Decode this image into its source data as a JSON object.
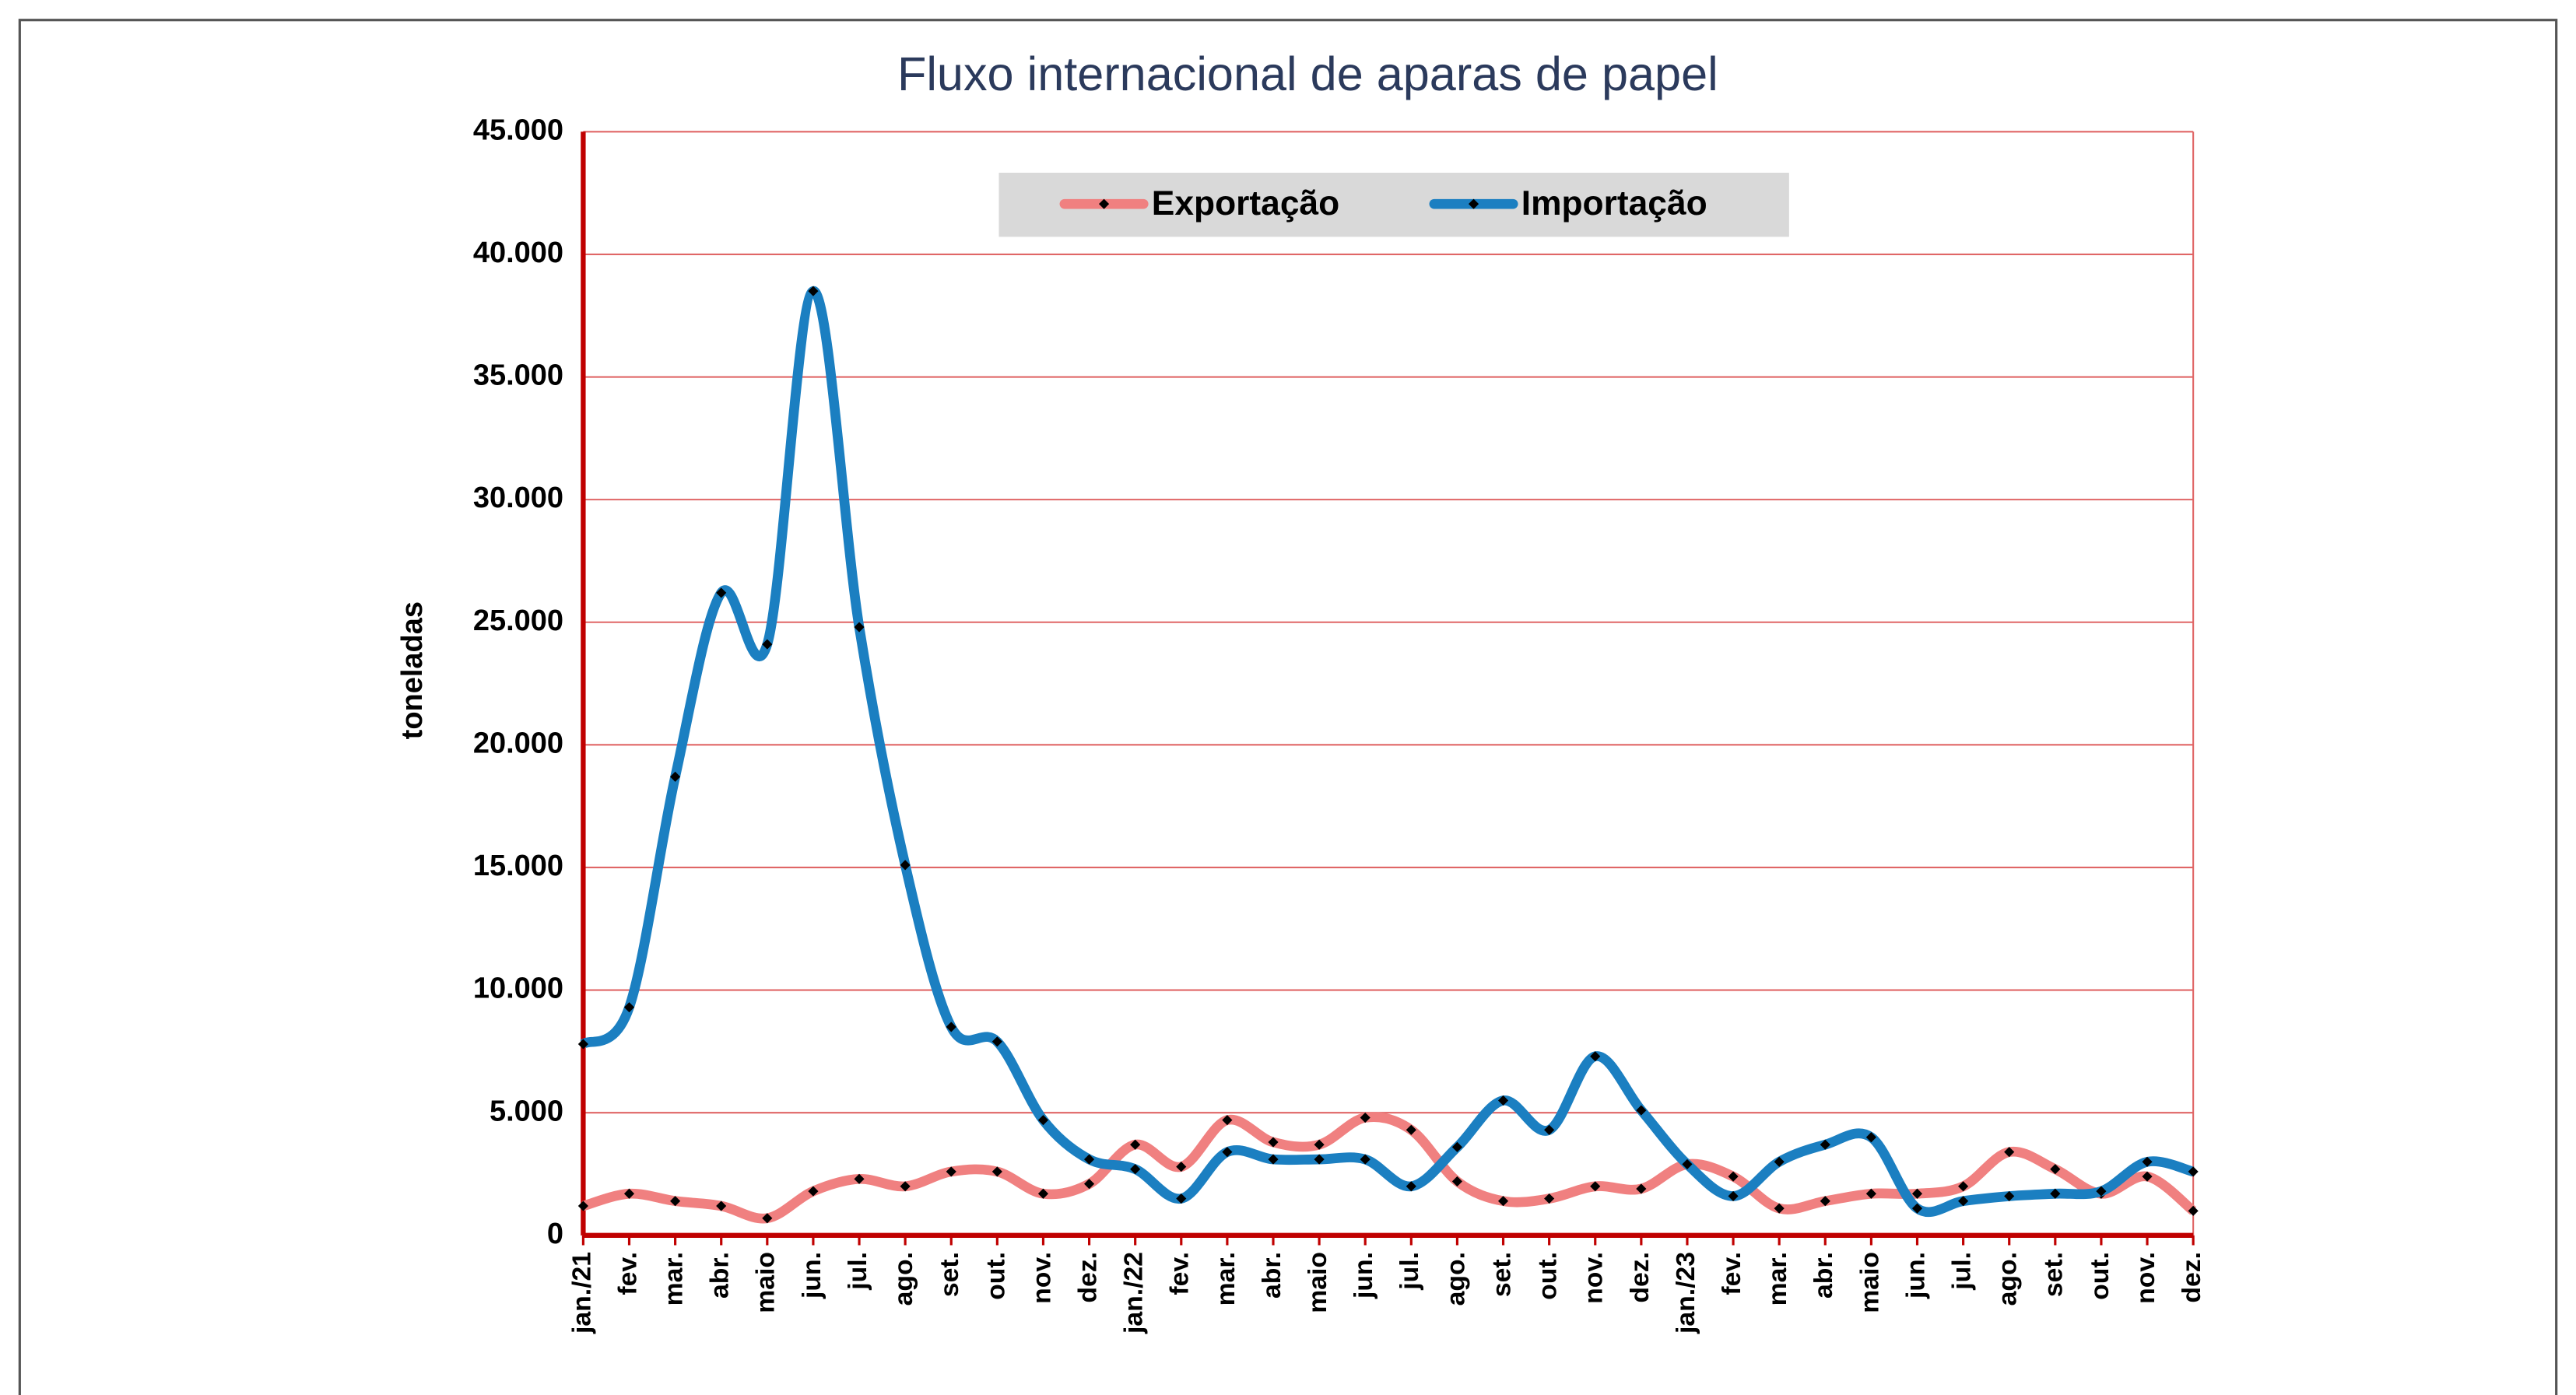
{
  "chart_data": {
    "type": "line",
    "title": "Fluxo internacional de aparas de papel",
    "ylabel": "toneladas",
    "categories": [
      "jan./21",
      "fev.",
      "mar.",
      "abr.",
      "maio",
      "jun.",
      "jul.",
      "ago.",
      "set.",
      "out.",
      "nov.",
      "dez.",
      "jan./22",
      "fev.",
      "mar.",
      "abr.",
      "maio",
      "jun.",
      "jul.",
      "ago.",
      "set.",
      "out.",
      "nov.",
      "dez.",
      "jan./23",
      "fev.",
      "mar.",
      "abr.",
      "maio",
      "jun.",
      "jul.",
      "ago.",
      "set.",
      "out.",
      "nov.",
      "dez."
    ],
    "series": [
      {
        "name": "Exportação",
        "color": "#f08080",
        "values": [
          1200,
          1700,
          1400,
          1200,
          700,
          1800,
          2300,
          2000,
          2600,
          2600,
          1700,
          2100,
          3700,
          2800,
          4700,
          3800,
          3700,
          4800,
          4300,
          2200,
          1400,
          1500,
          2000,
          1900,
          2900,
          2400,
          1100,
          1400,
          1700,
          1700,
          2000,
          3400,
          2700,
          1700,
          2400,
          1000
        ]
      },
      {
        "name": "Importação",
        "color": "#1b7fc1",
        "values": [
          7800,
          9300,
          18700,
          26200,
          24100,
          38500,
          24800,
          15100,
          8500,
          7900,
          4700,
          3100,
          2700,
          1500,
          3400,
          3100,
          3100,
          3100,
          2000,
          3600,
          5500,
          4300,
          7300,
          5100,
          2900,
          1600,
          3000,
          3700,
          4000,
          1100,
          1400,
          1600,
          1700,
          1800,
          3000,
          2600
        ]
      }
    ],
    "ylim": [
      0,
      45000
    ],
    "yticks": [
      0,
      {
        "value": 5000,
        "label": "5.000"
      },
      {
        "value": 10000,
        "label": "10.000"
      },
      {
        "value": 15000,
        "label": "15.000"
      },
      {
        "value": 20000,
        "label": "20.000"
      },
      {
        "value": 25000,
        "label": "25.000"
      },
      {
        "value": 30000,
        "label": "30.000"
      },
      {
        "value": 35000,
        "label": "35.000"
      },
      {
        "value": 40000,
        "label": "40.000"
      },
      {
        "value": 45000,
        "label": "45.000"
      }
    ],
    "grid": true,
    "grid_color": "#e06666",
    "axis_color": "#c00000",
    "legend": "top"
  }
}
